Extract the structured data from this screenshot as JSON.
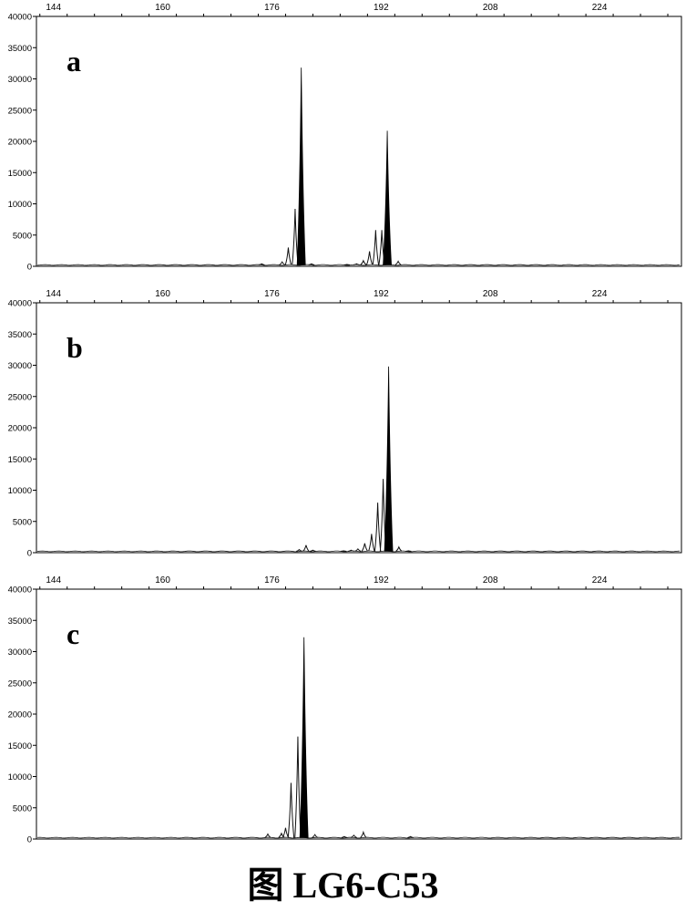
{
  "caption": "图 LG6-C53",
  "colors": {
    "trace": "#111111",
    "fill": "#000000",
    "axis": "#000000"
  },
  "chart_data": [
    {
      "type": "line",
      "panel_label": "a",
      "x_ticks": [
        144,
        160,
        176,
        192,
        208,
        224
      ],
      "y_ticks": [
        0,
        5000,
        10000,
        15000,
        20000,
        25000,
        30000,
        35000,
        40000
      ],
      "xlim": [
        141.5,
        236
      ],
      "ylim": [
        0,
        40000
      ],
      "grid": false,
      "peaks": [
        {
          "x": 174.5,
          "y": 400,
          "filled": false
        },
        {
          "x": 177.5,
          "y": 700,
          "filled": false
        },
        {
          "x": 178.4,
          "y": 3000,
          "filled": false
        },
        {
          "x": 179.4,
          "y": 9200,
          "filled": false
        },
        {
          "x": 180.3,
          "y": 31800,
          "filled": true
        },
        {
          "x": 181.8,
          "y": 400,
          "filled": false
        },
        {
          "x": 187.0,
          "y": 300,
          "filled": false
        },
        {
          "x": 188.4,
          "y": 400,
          "filled": false
        },
        {
          "x": 189.4,
          "y": 900,
          "filled": false
        },
        {
          "x": 190.3,
          "y": 2400,
          "filled": false
        },
        {
          "x": 191.2,
          "y": 5800,
          "filled": false
        },
        {
          "x": 192.1,
          "y": 5800,
          "filled": false
        },
        {
          "x": 192.9,
          "y": 21700,
          "filled": true
        },
        {
          "x": 194.5,
          "y": 800,
          "filled": false
        }
      ]
    },
    {
      "type": "line",
      "panel_label": "b",
      "x_ticks": [
        144,
        160,
        176,
        192,
        208,
        224
      ],
      "y_ticks": [
        0,
        5000,
        10000,
        15000,
        20000,
        25000,
        30000,
        35000,
        40000
      ],
      "xlim": [
        141.5,
        236
      ],
      "ylim": [
        0,
        40000
      ],
      "grid": false,
      "peaks": [
        {
          "x": 180.0,
          "y": 500,
          "filled": false
        },
        {
          "x": 181.0,
          "y": 1200,
          "filled": false
        },
        {
          "x": 182.0,
          "y": 400,
          "filled": false
        },
        {
          "x": 186.5,
          "y": 300,
          "filled": false
        },
        {
          "x": 187.6,
          "y": 400,
          "filled": false
        },
        {
          "x": 188.6,
          "y": 600,
          "filled": false
        },
        {
          "x": 189.6,
          "y": 1500,
          "filled": false
        },
        {
          "x": 190.6,
          "y": 3000,
          "filled": false
        },
        {
          "x": 191.5,
          "y": 8000,
          "filled": false
        },
        {
          "x": 192.3,
          "y": 11800,
          "filled": false
        },
        {
          "x": 193.1,
          "y": 29800,
          "filled": true
        },
        {
          "x": 194.6,
          "y": 900,
          "filled": false
        },
        {
          "x": 196.0,
          "y": 300,
          "filled": false
        }
      ]
    },
    {
      "type": "line",
      "panel_label": "c",
      "x_ticks": [
        144,
        160,
        176,
        192,
        208,
        224
      ],
      "y_ticks": [
        0,
        5000,
        10000,
        15000,
        20000,
        25000,
        30000,
        35000,
        40000
      ],
      "xlim": [
        141.5,
        236
      ],
      "ylim": [
        0,
        40000
      ],
      "grid": false,
      "peaks": [
        {
          "x": 175.4,
          "y": 800,
          "filled": false
        },
        {
          "x": 177.4,
          "y": 900,
          "filled": false
        },
        {
          "x": 178.0,
          "y": 1800,
          "filled": false
        },
        {
          "x": 178.8,
          "y": 9000,
          "filled": false
        },
        {
          "x": 179.8,
          "y": 16400,
          "filled": false
        },
        {
          "x": 180.7,
          "y": 32300,
          "filled": true
        },
        {
          "x": 182.3,
          "y": 700,
          "filled": false
        },
        {
          "x": 186.6,
          "y": 400,
          "filled": false
        },
        {
          "x": 188.0,
          "y": 600,
          "filled": false
        },
        {
          "x": 189.4,
          "y": 1100,
          "filled": false
        },
        {
          "x": 196.3,
          "y": 400,
          "filled": false
        }
      ]
    }
  ]
}
